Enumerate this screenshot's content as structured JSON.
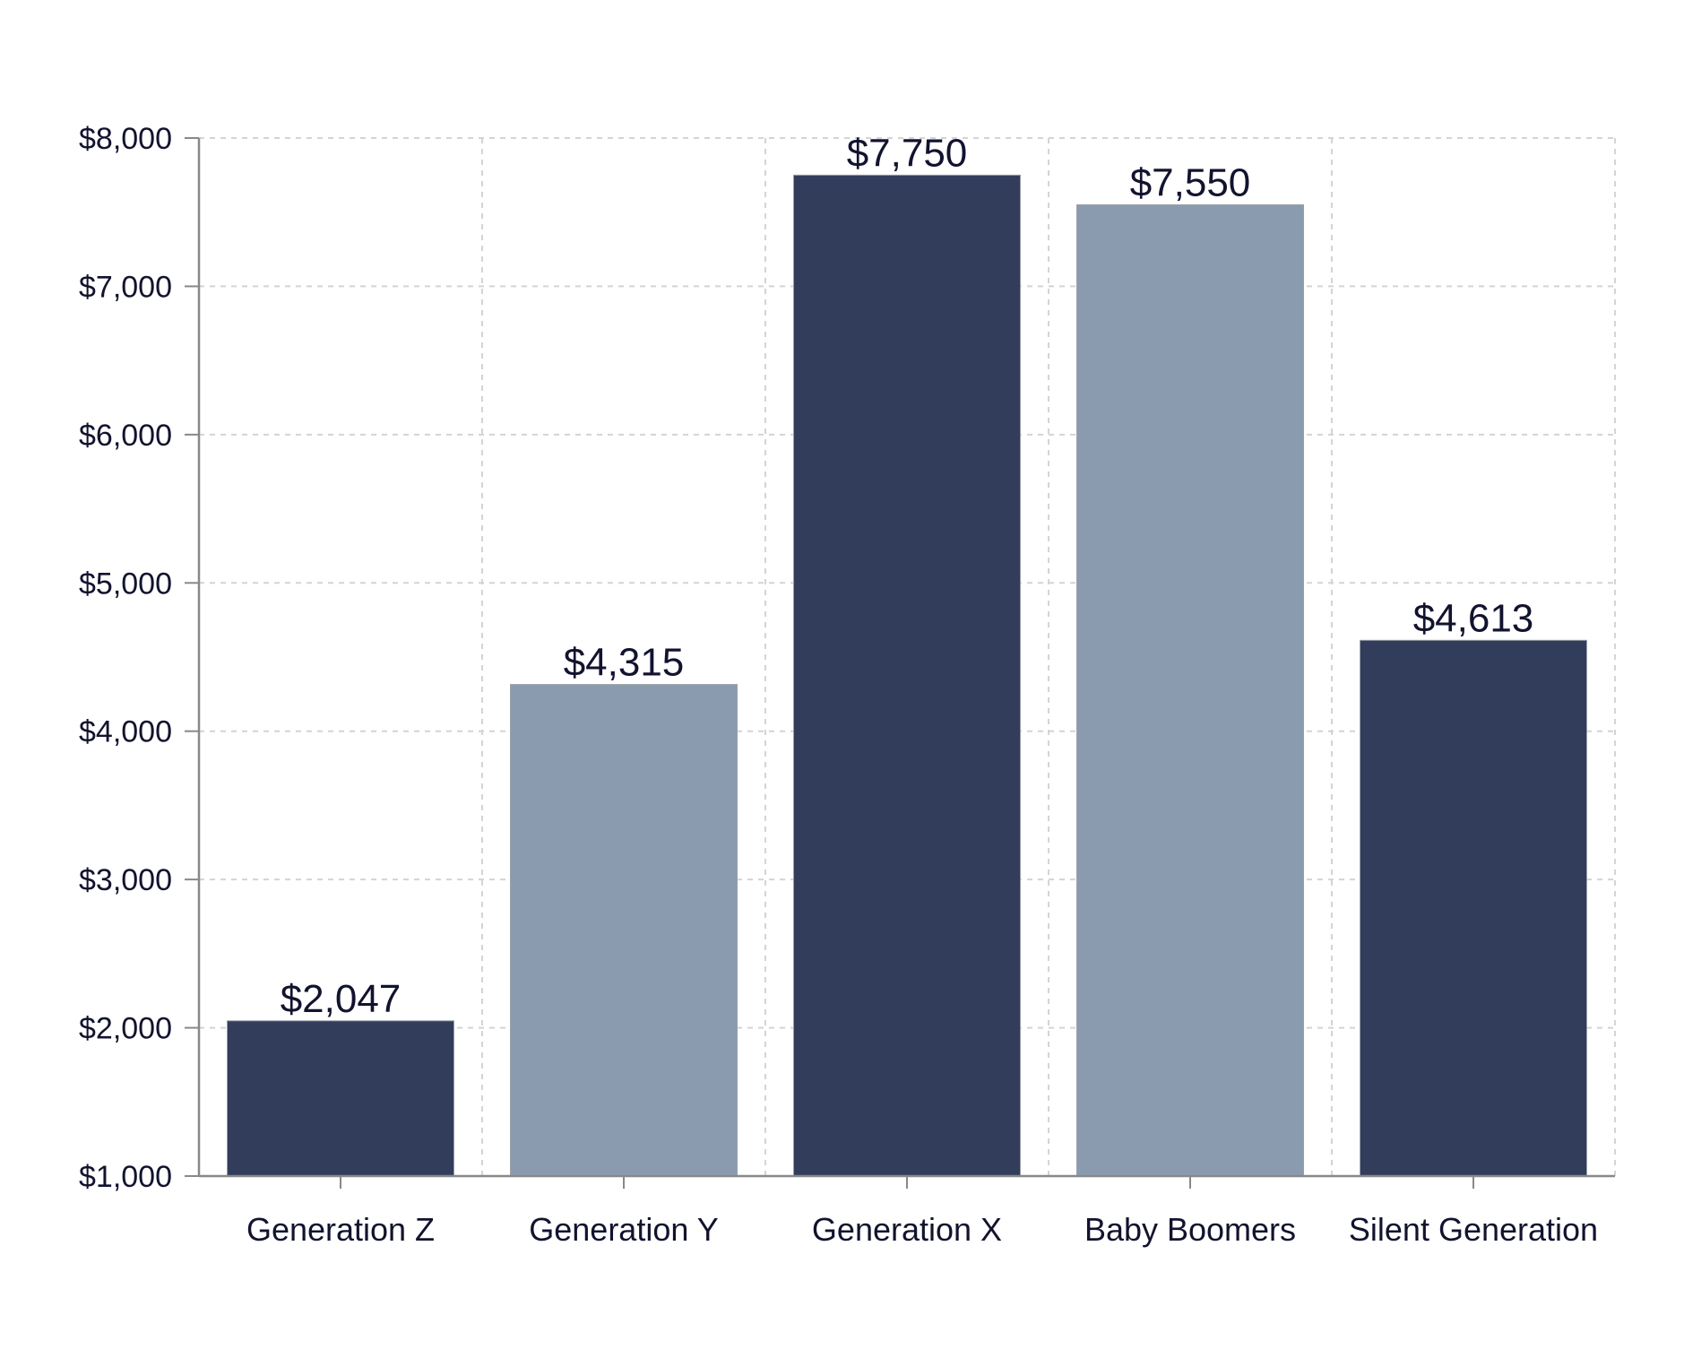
{
  "chart_data": {
    "type": "bar",
    "title": "",
    "xlabel": "",
    "ylabel": "",
    "categories": [
      "Generation Z",
      "Generation Y",
      "Generation X",
      "Baby Boomers",
      "Silent Generation"
    ],
    "values": [
      2047,
      4315,
      7750,
      7550,
      4613
    ],
    "data_labels": [
      "$2,047",
      "$4,315",
      "$7,750",
      "$7,550",
      "$4,613"
    ],
    "ylim": [
      1000,
      8000
    ],
    "yticks": [
      1000,
      2000,
      3000,
      4000,
      5000,
      6000,
      7000,
      8000
    ],
    "ytick_labels": [
      "$1,000",
      "$2,000",
      "$3,000",
      "$4,000",
      "$5,000",
      "$6,000",
      "$7,000",
      "$8,000"
    ],
    "bar_colors": [
      "#323d5c",
      "#8a9bb0",
      "#323d5c",
      "#8a9bb0",
      "#323d5c"
    ],
    "grid": true,
    "legend": "none"
  }
}
